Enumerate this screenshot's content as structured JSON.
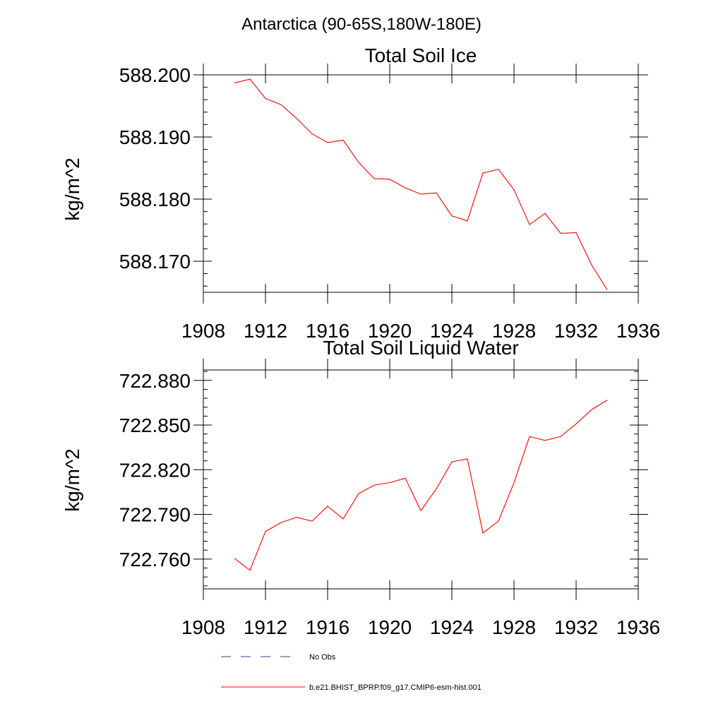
{
  "figure_title": "Antarctica (90-65S,180W-180E)",
  "colors": {
    "model_line": "#ff0000",
    "obs_line": "#3a3a8c",
    "frame": "#000000",
    "background": "#ffffff"
  },
  "chart_data": [
    {
      "type": "line",
      "title": "Total Soil Ice",
      "xlabel": "",
      "ylabel": "kg/m^2",
      "xlim": [
        1908,
        1936
      ],
      "ylim": [
        588.165,
        588.2
      ],
      "xticks": [
        1908,
        1912,
        1916,
        1920,
        1924,
        1928,
        1932,
        1936
      ],
      "xtick_labels": [
        "1908",
        "1912",
        "1916",
        "1920",
        "1924",
        "1928",
        "1932",
        "1936"
      ],
      "yticks": [
        588.17,
        588.18,
        588.19,
        588.2
      ],
      "ytick_labels": [
        "588.170",
        "588.180",
        "588.190",
        "588.200"
      ],
      "grid": false,
      "series": [
        {
          "name": "b.e21.BHIST_BPRP.f09_g17.CMIP6-esm-hist.001",
          "color": "#ff0000",
          "x": [
            1910,
            1911,
            1912,
            1913,
            1914,
            1915,
            1916,
            1917,
            1918,
            1919,
            1920,
            1921,
            1922,
            1923,
            1924,
            1925,
            1926,
            1927,
            1928,
            1929,
            1930,
            1931,
            1932,
            1933,
            1934
          ],
          "y": [
            588.1987,
            588.1993,
            588.1962,
            588.1952,
            588.193,
            588.1905,
            588.1891,
            588.1895,
            588.1859,
            588.1833,
            588.1832,
            588.1818,
            588.1808,
            588.181,
            588.1773,
            588.1765,
            588.1842,
            588.1848,
            588.1815,
            588.1759,
            588.1777,
            588.1745,
            588.1746,
            588.1694,
            588.1654
          ]
        }
      ]
    },
    {
      "type": "line",
      "title": "Total Soil Liquid Water",
      "xlabel": "",
      "ylabel": "kg/m^2",
      "xlim": [
        1908,
        1936
      ],
      "ylim": [
        722.74,
        722.887
      ],
      "xticks": [
        1908,
        1912,
        1916,
        1920,
        1924,
        1928,
        1932,
        1936
      ],
      "xtick_labels": [
        "1908",
        "1912",
        "1916",
        "1920",
        "1924",
        "1928",
        "1932",
        "1936"
      ],
      "yticks": [
        722.76,
        722.79,
        722.82,
        722.85,
        722.88
      ],
      "ytick_labels": [
        "722.760",
        "722.790",
        "722.820",
        "722.850",
        "722.880"
      ],
      "grid": false,
      "series": [
        {
          "name": "b.e21.BHIST_BPRP.f09_g17.CMIP6-esm-hist.001",
          "color": "#ff0000",
          "x": [
            1910,
            1911,
            1912,
            1913,
            1914,
            1915,
            1916,
            1917,
            1918,
            1919,
            1920,
            1921,
            1922,
            1923,
            1924,
            1925,
            1926,
            1927,
            1928,
            1929,
            1930,
            1931,
            1932,
            1933,
            1934
          ],
          "y": [
            722.7605,
            722.7525,
            722.7785,
            722.7845,
            722.788,
            722.7855,
            722.7955,
            722.787,
            722.804,
            722.8097,
            722.8113,
            722.8143,
            722.7925,
            722.8071,
            722.8253,
            722.8273,
            722.7775,
            722.7855,
            722.8113,
            722.8423,
            722.8397,
            722.8423,
            722.8508,
            722.8604,
            722.8668
          ]
        }
      ]
    }
  ],
  "legend": {
    "placement": "bottom",
    "items": [
      {
        "label": "No Obs",
        "style": "dashed",
        "color": "#3a3a8c"
      },
      {
        "label": "b.e21.BHIST_BPRP.f09_g17.CMIP6-esm-hist.001",
        "style": "solid",
        "color": "#ff0000"
      }
    ]
  }
}
